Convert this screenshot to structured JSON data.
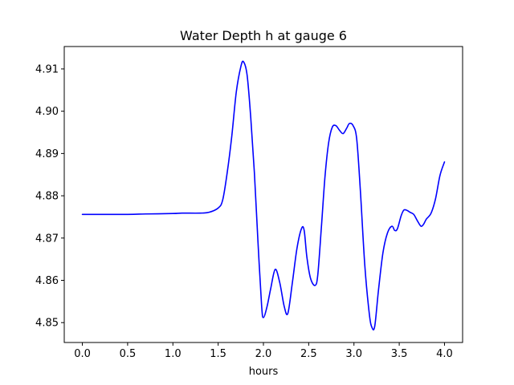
{
  "chart_data": {
    "type": "line",
    "title": "Water Depth h at gauge 6",
    "xlabel": "hours",
    "ylabel": "",
    "xlim": [
      -0.2,
      4.2
    ],
    "ylim": [
      4.8453,
      4.9153
    ],
    "xticks": [
      0.0,
      0.5,
      1.0,
      1.5,
      2.0,
      2.5,
      3.0,
      3.5,
      4.0
    ],
    "xtick_labels": [
      "0.0",
      "0.5",
      "1.0",
      "1.5",
      "2.0",
      "2.5",
      "3.0",
      "3.5",
      "4.0"
    ],
    "yticks": [
      4.85,
      4.86,
      4.87,
      4.88,
      4.89,
      4.9,
      4.91
    ],
    "ytick_labels": [
      "4.85",
      "4.86",
      "4.87",
      "4.88",
      "4.89",
      "4.90",
      "4.91"
    ],
    "grid": false,
    "legend": "none",
    "series": [
      {
        "color": "#0000ff",
        "x": [
          0.0,
          0.5,
          0.7,
          1.0,
          1.1,
          1.3,
          1.4,
          1.5,
          1.55,
          1.6,
          1.65,
          1.7,
          1.75,
          1.78,
          1.82,
          1.86,
          1.9,
          1.94,
          1.98,
          2.0,
          2.04,
          2.08,
          2.13,
          2.18,
          2.23,
          2.27,
          2.32,
          2.37,
          2.42,
          2.45,
          2.48,
          2.52,
          2.57,
          2.6,
          2.64,
          2.68,
          2.72,
          2.76,
          2.8,
          2.84,
          2.88,
          2.92,
          2.95,
          2.99,
          3.03,
          3.07,
          3.12,
          3.17,
          3.2,
          3.23,
          3.27,
          3.32,
          3.37,
          3.42,
          3.45,
          3.48,
          3.52,
          3.55,
          3.58,
          3.62,
          3.66,
          3.7,
          3.74,
          3.77,
          3.8,
          3.85,
          3.9,
          3.95,
          4.0
        ],
        "y": [
          4.8756,
          4.8756,
          4.8757,
          4.8758,
          4.8759,
          4.8759,
          4.8761,
          4.8771,
          4.879,
          4.8855,
          4.894,
          4.9045,
          4.9105,
          4.9117,
          4.9085,
          4.8985,
          4.8855,
          4.869,
          4.854,
          4.8512,
          4.8538,
          4.858,
          4.8626,
          4.8595,
          4.8538,
          4.8522,
          4.8595,
          4.8675,
          4.8722,
          4.8718,
          4.8655,
          4.8605,
          4.8588,
          4.8612,
          4.8725,
          4.8845,
          4.8925,
          4.8962,
          4.8966,
          4.8955,
          4.8947,
          4.896,
          4.8971,
          4.8966,
          4.8935,
          4.8815,
          4.8635,
          4.852,
          4.8488,
          4.8492,
          4.8575,
          4.8665,
          4.8712,
          4.8728,
          4.8718,
          4.8722,
          4.8752,
          4.8766,
          4.8766,
          4.8761,
          4.8756,
          4.8741,
          4.8728,
          4.8733,
          4.8745,
          4.8758,
          4.8792,
          4.8848,
          4.888
        ]
      }
    ]
  }
}
